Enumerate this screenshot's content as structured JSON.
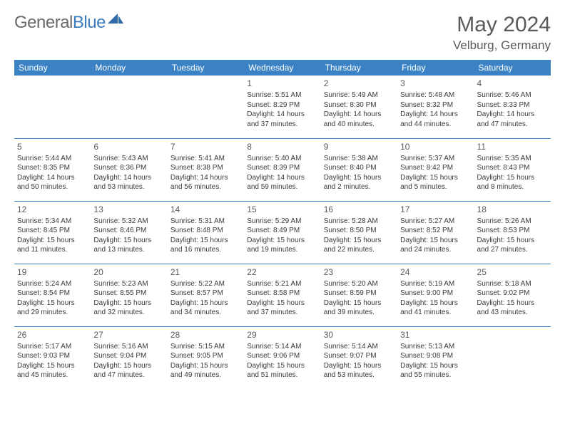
{
  "logo": {
    "part1": "General",
    "part2": "Blue"
  },
  "title": "May 2024",
  "location": "Velburg, Germany",
  "colors": {
    "header_bg": "#3b82c4",
    "header_text": "#ffffff",
    "rule": "#3b82c4",
    "text": "#3a3a3a",
    "muted": "#5a5a5a",
    "logo_gray": "#6a6a6a",
    "logo_blue": "#3b7bbf"
  },
  "weekdays": [
    "Sunday",
    "Monday",
    "Tuesday",
    "Wednesday",
    "Thursday",
    "Friday",
    "Saturday"
  ],
  "weeks": [
    [
      null,
      null,
      null,
      {
        "d": "1",
        "sr": "5:51 AM",
        "ss": "8:29 PM",
        "dl": "14 hours and 37 minutes."
      },
      {
        "d": "2",
        "sr": "5:49 AM",
        "ss": "8:30 PM",
        "dl": "14 hours and 40 minutes."
      },
      {
        "d": "3",
        "sr": "5:48 AM",
        "ss": "8:32 PM",
        "dl": "14 hours and 44 minutes."
      },
      {
        "d": "4",
        "sr": "5:46 AM",
        "ss": "8:33 PM",
        "dl": "14 hours and 47 minutes."
      }
    ],
    [
      {
        "d": "5",
        "sr": "5:44 AM",
        "ss": "8:35 PM",
        "dl": "14 hours and 50 minutes."
      },
      {
        "d": "6",
        "sr": "5:43 AM",
        "ss": "8:36 PM",
        "dl": "14 hours and 53 minutes."
      },
      {
        "d": "7",
        "sr": "5:41 AM",
        "ss": "8:38 PM",
        "dl": "14 hours and 56 minutes."
      },
      {
        "d": "8",
        "sr": "5:40 AM",
        "ss": "8:39 PM",
        "dl": "14 hours and 59 minutes."
      },
      {
        "d": "9",
        "sr": "5:38 AM",
        "ss": "8:40 PM",
        "dl": "15 hours and 2 minutes."
      },
      {
        "d": "10",
        "sr": "5:37 AM",
        "ss": "8:42 PM",
        "dl": "15 hours and 5 minutes."
      },
      {
        "d": "11",
        "sr": "5:35 AM",
        "ss": "8:43 PM",
        "dl": "15 hours and 8 minutes."
      }
    ],
    [
      {
        "d": "12",
        "sr": "5:34 AM",
        "ss": "8:45 PM",
        "dl": "15 hours and 11 minutes."
      },
      {
        "d": "13",
        "sr": "5:32 AM",
        "ss": "8:46 PM",
        "dl": "15 hours and 13 minutes."
      },
      {
        "d": "14",
        "sr": "5:31 AM",
        "ss": "8:48 PM",
        "dl": "15 hours and 16 minutes."
      },
      {
        "d": "15",
        "sr": "5:29 AM",
        "ss": "8:49 PM",
        "dl": "15 hours and 19 minutes."
      },
      {
        "d": "16",
        "sr": "5:28 AM",
        "ss": "8:50 PM",
        "dl": "15 hours and 22 minutes."
      },
      {
        "d": "17",
        "sr": "5:27 AM",
        "ss": "8:52 PM",
        "dl": "15 hours and 24 minutes."
      },
      {
        "d": "18",
        "sr": "5:26 AM",
        "ss": "8:53 PM",
        "dl": "15 hours and 27 minutes."
      }
    ],
    [
      {
        "d": "19",
        "sr": "5:24 AM",
        "ss": "8:54 PM",
        "dl": "15 hours and 29 minutes."
      },
      {
        "d": "20",
        "sr": "5:23 AM",
        "ss": "8:55 PM",
        "dl": "15 hours and 32 minutes."
      },
      {
        "d": "21",
        "sr": "5:22 AM",
        "ss": "8:57 PM",
        "dl": "15 hours and 34 minutes."
      },
      {
        "d": "22",
        "sr": "5:21 AM",
        "ss": "8:58 PM",
        "dl": "15 hours and 37 minutes."
      },
      {
        "d": "23",
        "sr": "5:20 AM",
        "ss": "8:59 PM",
        "dl": "15 hours and 39 minutes."
      },
      {
        "d": "24",
        "sr": "5:19 AM",
        "ss": "9:00 PM",
        "dl": "15 hours and 41 minutes."
      },
      {
        "d": "25",
        "sr": "5:18 AM",
        "ss": "9:02 PM",
        "dl": "15 hours and 43 minutes."
      }
    ],
    [
      {
        "d": "26",
        "sr": "5:17 AM",
        "ss": "9:03 PM",
        "dl": "15 hours and 45 minutes."
      },
      {
        "d": "27",
        "sr": "5:16 AM",
        "ss": "9:04 PM",
        "dl": "15 hours and 47 minutes."
      },
      {
        "d": "28",
        "sr": "5:15 AM",
        "ss": "9:05 PM",
        "dl": "15 hours and 49 minutes."
      },
      {
        "d": "29",
        "sr": "5:14 AM",
        "ss": "9:06 PM",
        "dl": "15 hours and 51 minutes."
      },
      {
        "d": "30",
        "sr": "5:14 AM",
        "ss": "9:07 PM",
        "dl": "15 hours and 53 minutes."
      },
      {
        "d": "31",
        "sr": "5:13 AM",
        "ss": "9:08 PM",
        "dl": "15 hours and 55 minutes."
      },
      null
    ]
  ],
  "labels": {
    "sunrise": "Sunrise: ",
    "sunset": "Sunset: ",
    "daylight": "Daylight: "
  }
}
